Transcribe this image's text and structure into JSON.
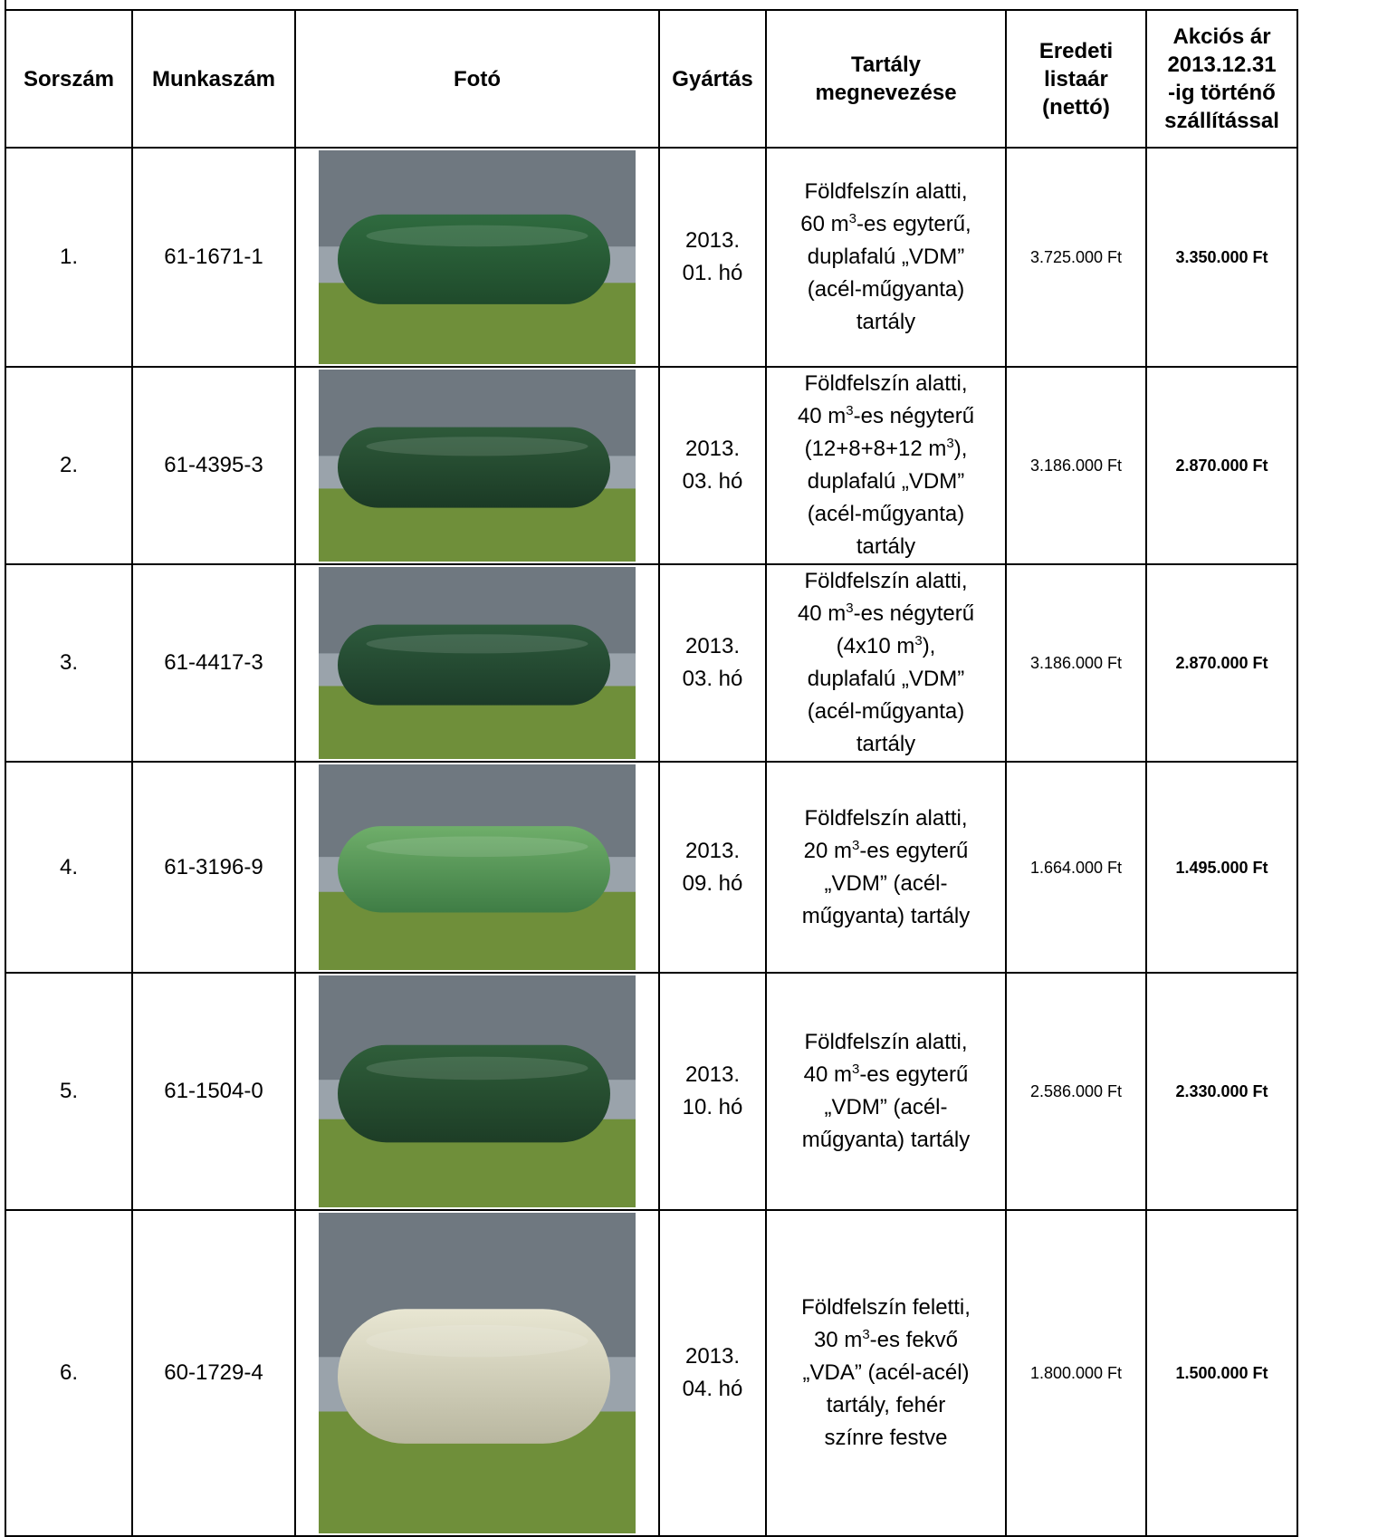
{
  "table": {
    "header": [
      [
        "Sorszám"
      ],
      [
        "Munkaszám"
      ],
      [
        "Fotó"
      ],
      [
        "Gyártás"
      ],
      [
        "Tartály",
        "megnevezése"
      ],
      [
        "Eredeti",
        "listaár",
        "(nettó)"
      ],
      [
        "Akciós ár",
        "2013.12.31",
        "-ig történő",
        "szállítással"
      ]
    ],
    "rows": [
      {
        "number": "1.",
        "job": "61-1671-1",
        "production": [
          "2013.",
          "01.  hó"
        ],
        "description": [
          [
            "Földfelszín alatti,"
          ],
          [
            "60 m",
            "3",
            "-es egyterű,"
          ],
          [
            "duplafalú „VDM”"
          ],
          [
            "(acél-műgyanta)"
          ],
          [
            "tartály"
          ]
        ],
        "list_price": "3.725.000 Ft",
        "action_price": "3.350.000 Ft"
      },
      {
        "number": "2.",
        "job": "61-4395-3",
        "production": [
          "2013.",
          "03. hó"
        ],
        "description": [
          [
            "Földfelszín alatti,"
          ],
          [
            "40 m",
            "3",
            "-es négyterű"
          ],
          [
            "(12+8+8+12 m",
            "3",
            "),"
          ],
          [
            "duplafalú „VDM”"
          ],
          [
            "(acél-műgyanta)"
          ],
          [
            "tartály"
          ]
        ],
        "list_price": "3.186.000 Ft",
        "action_price": "2.870.000 Ft"
      },
      {
        "number": "3.",
        "job": "61-4417-3",
        "production": [
          "2013.",
          "03. hó"
        ],
        "description": [
          [
            "Földfelszín alatti,"
          ],
          [
            "40 m",
            "3",
            "-es négyterű"
          ],
          [
            "(4x10 m",
            "3",
            "),"
          ],
          [
            "duplafalú „VDM”"
          ],
          [
            "(acél-műgyanta)"
          ],
          [
            "tartály"
          ]
        ],
        "list_price": "3.186.000 Ft",
        "action_price": "2.870.000 Ft"
      },
      {
        "number": "4.",
        "job": "61-3196-9",
        "production": [
          "2013.",
          "09. hó"
        ],
        "description": [
          [
            "Földfelszín alatti,"
          ],
          [
            "20 m",
            "3",
            "-es egyterű"
          ],
          [
            "„VDM” (acél-"
          ],
          [
            "műgyanta) tartály"
          ]
        ],
        "list_price": "1.664.000 Ft",
        "action_price": "1.495.000 Ft"
      },
      {
        "number": "5.",
        "job": "61-1504-0",
        "production": [
          "2013.",
          "10. hó"
        ],
        "description": [
          [
            "Földfelszín alatti,"
          ],
          [
            "40 m",
            "3",
            "-es egyterű"
          ],
          [
            "„VDM” (acél-"
          ],
          [
            "műgyanta) tartály"
          ]
        ],
        "list_price": "2.586.000 Ft",
        "action_price": "2.330.000 Ft"
      },
      {
        "number": "6.",
        "job": "60-1729-4",
        "production": [
          "2013.",
          "04. hó"
        ],
        "description": [
          [
            "Földfelszín feletti,"
          ],
          [
            "30 m",
            "3",
            "-es fekvő"
          ],
          [
            "„VDA” (acél-acél)"
          ],
          [
            "tartály, fehér"
          ],
          [
            "színre festve"
          ]
        ],
        "list_price": "1.800.000 Ft",
        "action_price": "1.500.000 Ft"
      }
    ]
  }
}
